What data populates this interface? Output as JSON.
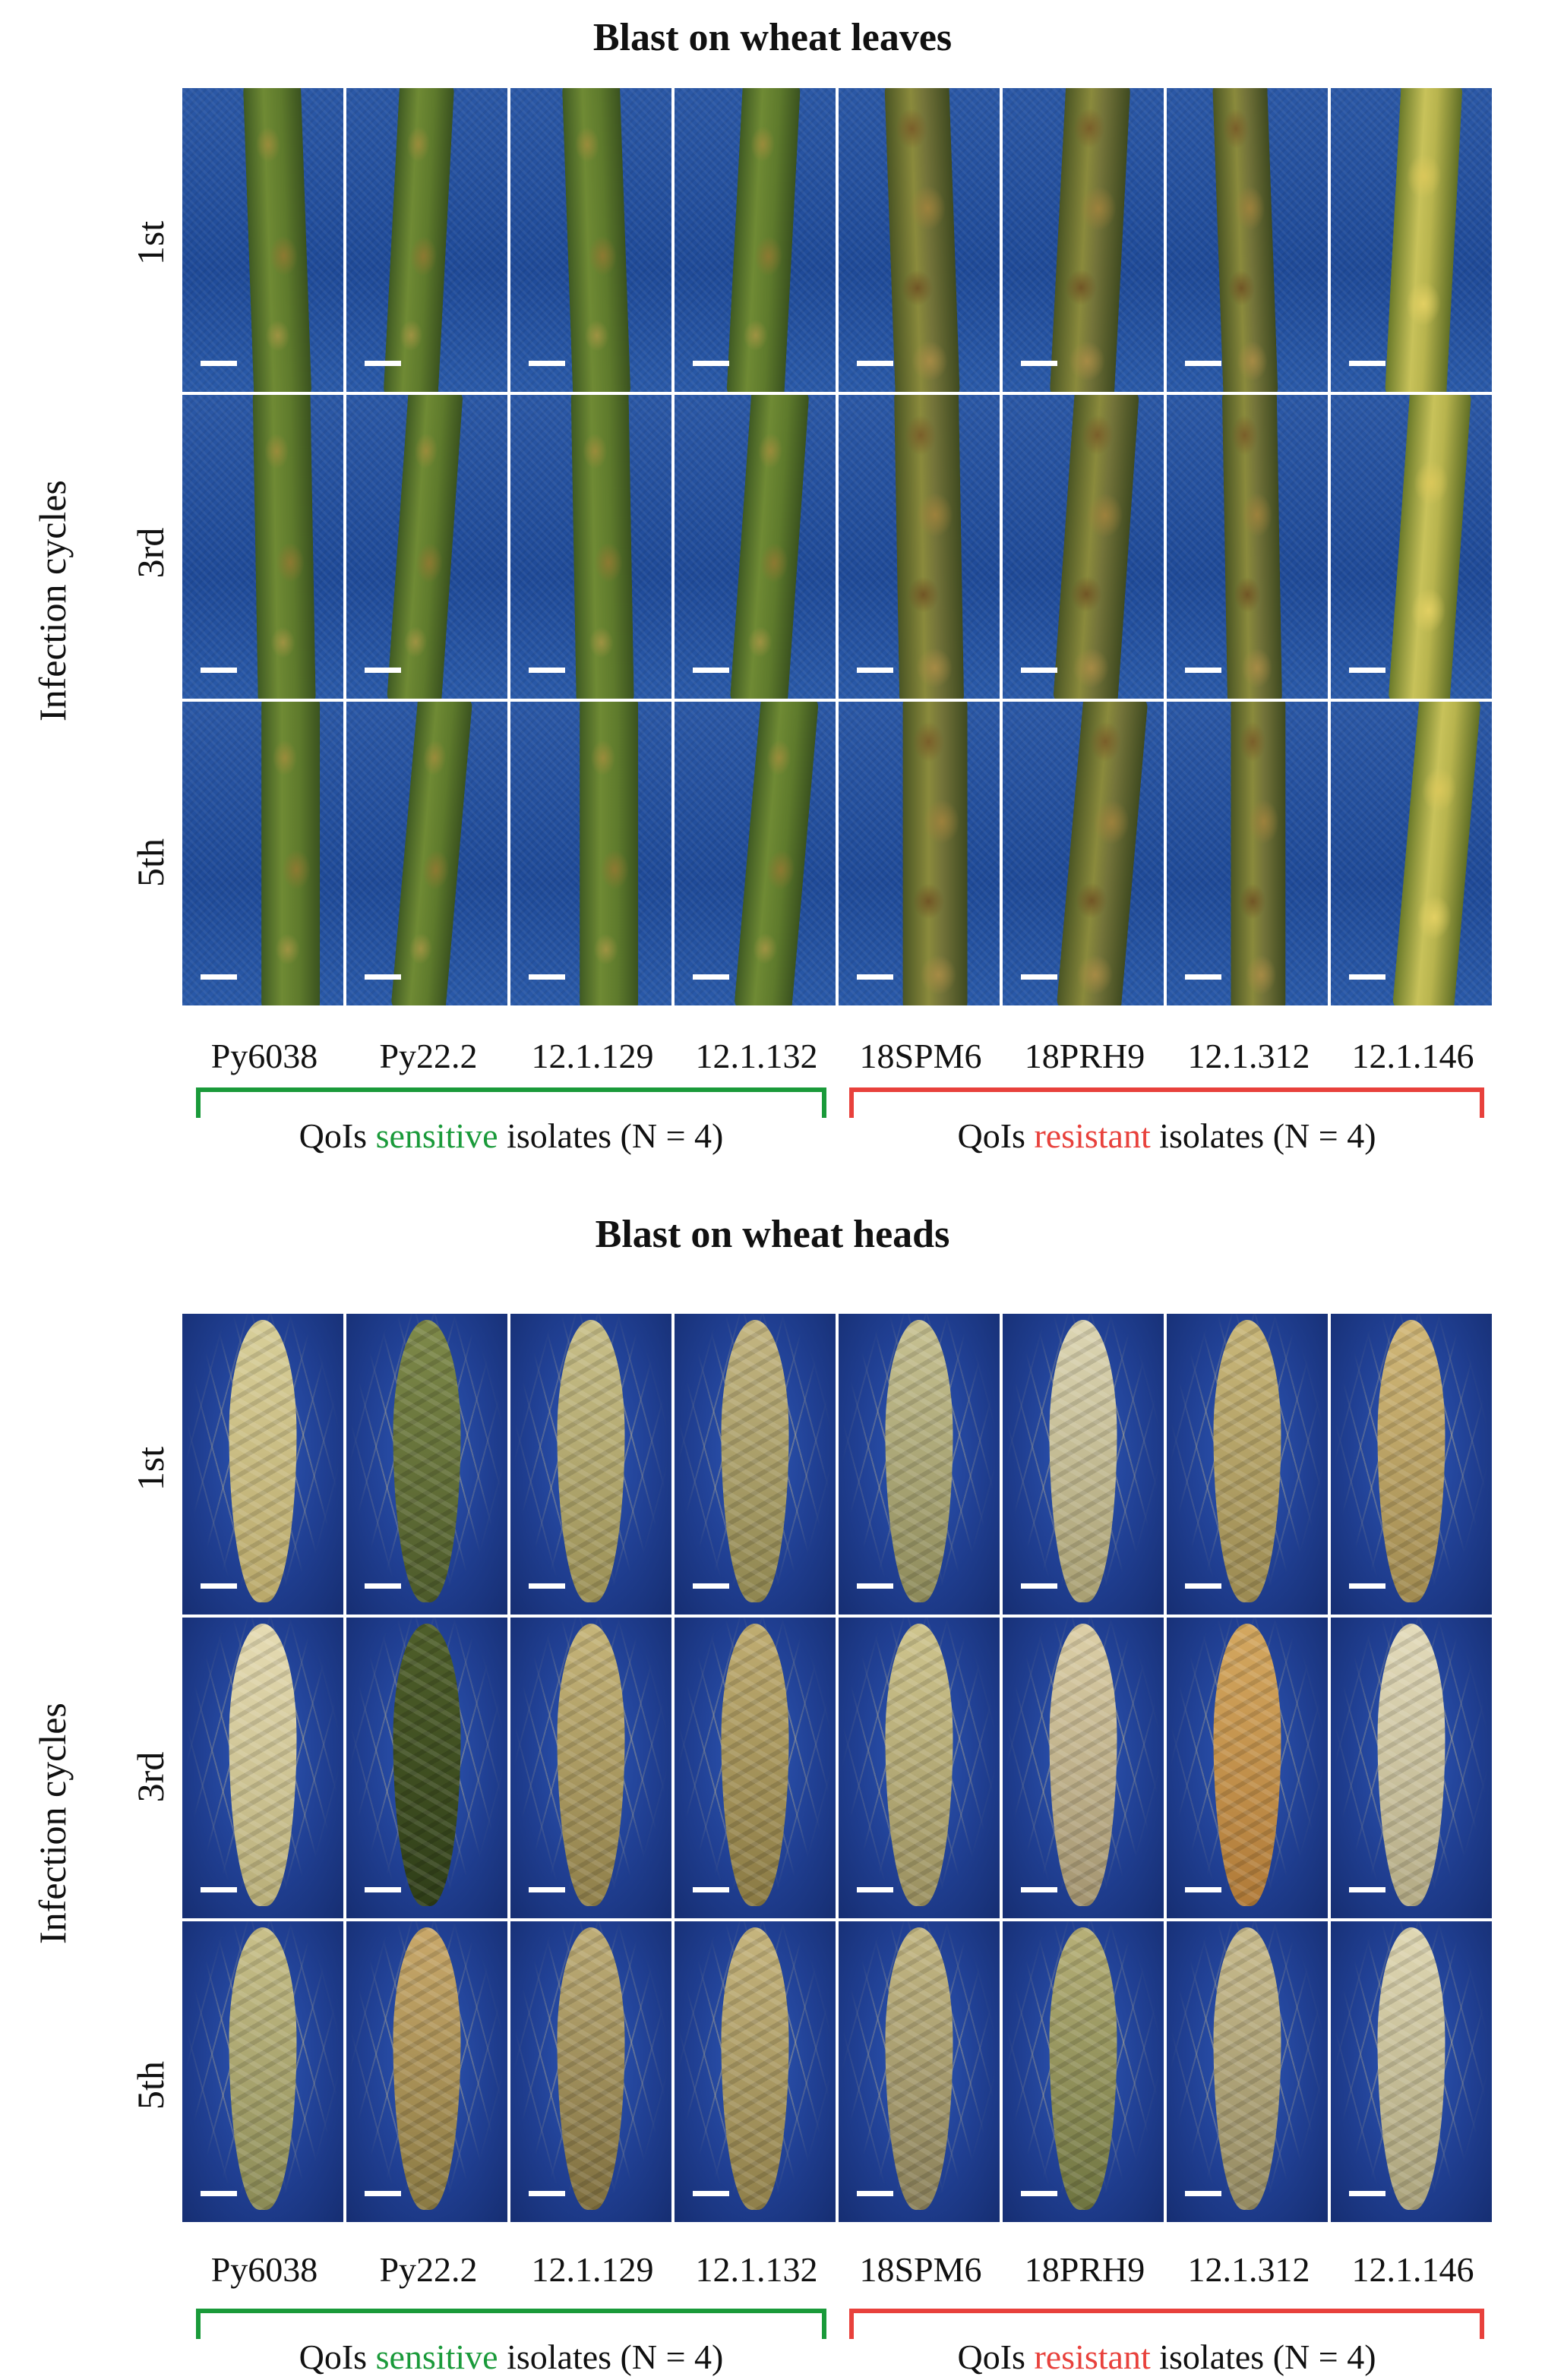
{
  "colors": {
    "sensitive": "#1a9a3a",
    "resistant": "#e8413c"
  },
  "leaves_panel": {
    "title": "Blast on wheat leaves",
    "side_label": "Infection cycles",
    "rows": [
      "1st",
      "3rd",
      "5th"
    ],
    "isolates": [
      "Py6038",
      "Py22.2",
      "12.1.129",
      "12.1.132",
      "18SPM6",
      "18PRH9",
      "12.1.312",
      "12.1.146"
    ],
    "groups": [
      {
        "prefix": "QoIs ",
        "keyword": "sensitive",
        "suffix": " isolates (N = 4)"
      },
      {
        "prefix": "QoIs ",
        "keyword": "resistant",
        "suffix": " isolates (N = 4)"
      }
    ]
  },
  "heads_panel": {
    "title": "Blast on wheat heads",
    "side_label": "Infection cycles",
    "rows": [
      "1st",
      "3rd",
      "5th"
    ],
    "isolates": [
      "Py6038",
      "Py22.2",
      "12.1.129",
      "12.1.132",
      "18SPM6",
      "18PRH9",
      "12.1.312",
      "12.1.146"
    ],
    "groups": [
      {
        "prefix": "QoIs ",
        "keyword": "sensitive",
        "suffix": " isolates (N = 4)"
      },
      {
        "prefix": "QoIs ",
        "keyword": "resistant",
        "suffix": " isolates (N = 4)"
      }
    ]
  }
}
